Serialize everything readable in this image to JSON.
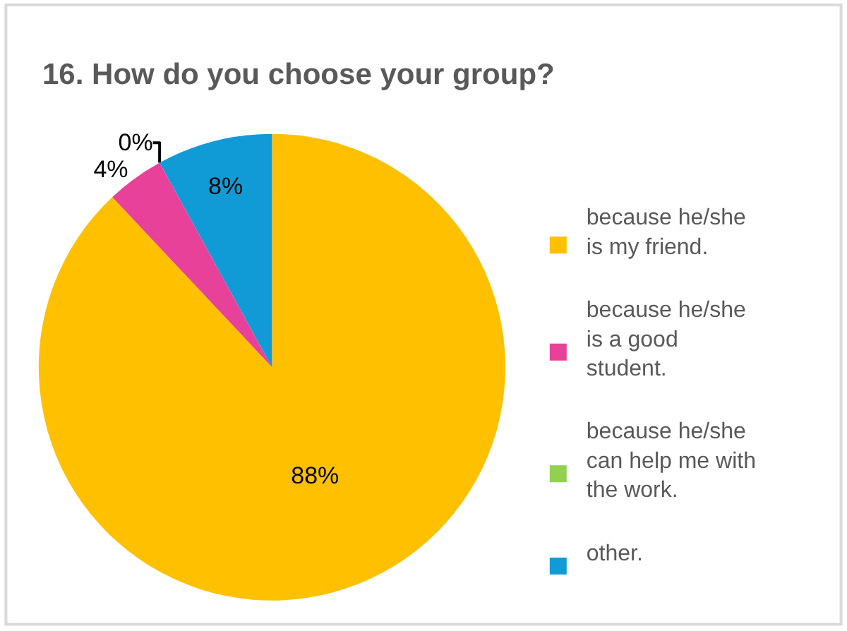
{
  "chart_data": {
    "type": "pie",
    "title": "16. How do you choose your group?",
    "categories": [
      "because he/she is my friend.",
      "because he/she is a good student.",
      "because he/she can help me with the work.",
      "other."
    ],
    "values": [
      88,
      4,
      0,
      8
    ],
    "value_labels": [
      "88%",
      "4%",
      "0%",
      "8%"
    ],
    "colors": [
      "#ffc000",
      "#e8419a",
      "#92d050",
      "#109bd7"
    ],
    "legend": "right"
  }
}
